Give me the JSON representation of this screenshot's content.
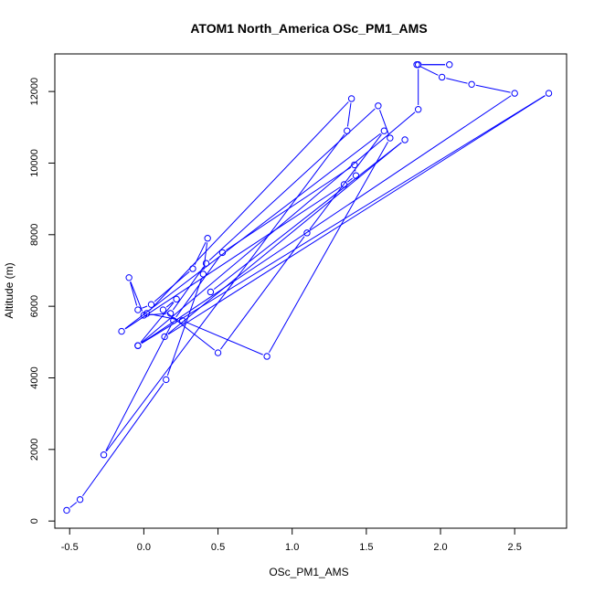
{
  "chart_data": {
    "type": "line",
    "title": "ATOM1 North_America OSc_PM1_AMS",
    "xlabel": "OSc_PM1_AMS",
    "ylabel": "Altitude (m)",
    "xlim": [
      -0.6,
      2.85
    ],
    "ylim": [
      -200,
      13050
    ],
    "x_ticks": [
      -0.5,
      0.0,
      0.5,
      1.0,
      1.5,
      2.0,
      2.5
    ],
    "x_tick_labels": [
      "-0.5",
      "0.0",
      "0.5",
      "1.0",
      "1.5",
      "2.0",
      "2.5"
    ],
    "y_ticks": [
      0,
      2000,
      4000,
      6000,
      8000,
      10000,
      12000
    ],
    "y_tick_labels": [
      "0",
      "2000",
      "4000",
      "6000",
      "8000",
      "10000",
      "12000"
    ],
    "grid": false,
    "legend": "none",
    "series_color": "#0000ff",
    "marker": "open-circle",
    "series": [
      {
        "x": [
          -0.52,
          -0.43,
          0.15,
          0.4,
          0.43,
          0.33,
          0.05,
          -0.04,
          -0.1,
          0.0,
          0.18,
          0.42,
          1.58,
          1.66,
          0.83,
          0.26,
          0.02,
          1.4,
          1.37,
          -0.27,
          0.2,
          0.53,
          1.42,
          1.43,
          1.35,
          -0.15,
          1.62,
          1.1,
          0.5,
          0.13,
          0.22,
          -0.04,
          1.85,
          1.85,
          2.06,
          1.84,
          2.01,
          2.21,
          2.5,
          -0.04,
          2.73,
          0.14,
          1.76,
          0.45
        ],
        "y": [
          300,
          600,
          3950,
          6900,
          7900,
          7050,
          6050,
          5900,
          6800,
          5750,
          5800,
          7200,
          11600,
          10700,
          4600,
          5600,
          5800,
          11800,
          10900,
          1850,
          5600,
          7500,
          9950,
          9650,
          9400,
          5300,
          10900,
          8050,
          4700,
          5900,
          6200,
          4900,
          11500,
          12750,
          12750,
          12750,
          12400,
          12200,
          11950,
          4900,
          11950,
          5150,
          10650,
          6400
        ]
      }
    ]
  }
}
